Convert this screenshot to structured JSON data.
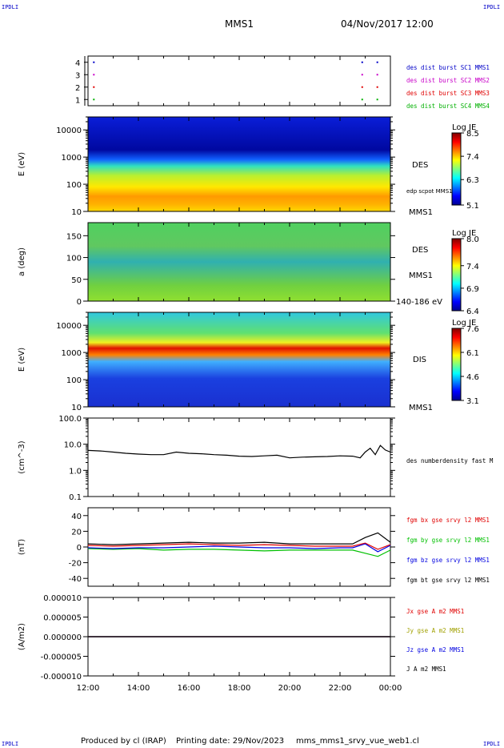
{
  "header": {
    "spacecraft": "MMS1",
    "datetime": "04/Nov/2017 12:00",
    "corner_label": "IPDLI"
  },
  "footer": {
    "produced_by": "Produced by cl (IRAP)",
    "printing_date": "Printing date: 29/Nov/2023",
    "script_name": "mms_mms1_srvy_vue_web1.cl"
  },
  "chart_data": [
    {
      "id": "burst",
      "type": "scatter",
      "ylim": [
        0.5,
        4.5
      ],
      "yticks": [
        "1",
        "2",
        "3",
        "4"
      ],
      "legend": [
        {
          "label": "des dist burst SC1 MMS1",
          "color": "#0000c8"
        },
        {
          "label": "des dist burst SC2 MMS2",
          "color": "#c800c8"
        },
        {
          "label": "des dist burst SC3 MMS3",
          "color": "#e00000"
        },
        {
          "label": "des dist burst SC4 MMS4",
          "color": "#00b000"
        }
      ],
      "marks": [
        {
          "sc": 4,
          "t": [
            12.2,
            22.85,
            23.45
          ]
        },
        {
          "sc": 3,
          "t": [
            12.2,
            22.85,
            23.45
          ]
        },
        {
          "sc": 2,
          "t": [
            12.2,
            22.85,
            23.45
          ]
        },
        {
          "sc": 1,
          "t": [
            12.2,
            22.85,
            23.45
          ]
        }
      ]
    },
    {
      "id": "des_energy",
      "type": "heatmap",
      "ylabel": "E (eV)",
      "yscale": "log",
      "ylim": [
        10,
        30000
      ],
      "yticks": [
        "10",
        "100",
        "1000",
        "10000"
      ],
      "right_labels": [
        "DES",
        "edp scpot MMS1",
        "MMS1"
      ],
      "colorbar": {
        "title": "Log JE",
        "ticks": [
          "8.5",
          "7.4",
          "6.3",
          "5.1"
        ],
        "min": 5.1,
        "max": 8.5
      }
    },
    {
      "id": "des_pitch",
      "type": "heatmap",
      "ylabel": "a (deg)",
      "ylim": [
        0,
        180
      ],
      "yticks": [
        "0",
        "50",
        "100",
        "150"
      ],
      "right_labels": [
        "DES",
        "MMS1",
        "140-186 eV"
      ],
      "colorbar": {
        "title": "Log JE",
        "ticks": [
          "8.0",
          "7.4",
          "6.9",
          "6.4"
        ],
        "min": 6.4,
        "max": 8.0
      }
    },
    {
      "id": "dis_energy",
      "type": "heatmap",
      "ylabel": "E (eV)",
      "yscale": "log",
      "ylim": [
        10,
        30000
      ],
      "yticks": [
        "10",
        "100",
        "1000",
        "10000"
      ],
      "right_labels": [
        "DIS",
        "MMS1"
      ],
      "colorbar": {
        "title": "Log JE",
        "ticks": [
          "7.6",
          "6.1",
          "4.6",
          "3.1"
        ],
        "min": 3.1,
        "max": 7.6
      }
    },
    {
      "id": "density",
      "type": "line",
      "ylabel": "(cm^-3)",
      "yscale": "log",
      "ylim": [
        0.1,
        100
      ],
      "yticks": [
        "0.1",
        "1.0",
        "10.0",
        "100.0"
      ],
      "series": [
        {
          "name": "des numberdensity fast M",
          "color": "#000000",
          "x": [
            12.0,
            12.5,
            13.0,
            13.5,
            14.0,
            14.5,
            15.0,
            15.5,
            16.0,
            16.5,
            17.0,
            17.5,
            18.0,
            18.5,
            19.0,
            19.5,
            20.0,
            20.5,
            21.0,
            21.5,
            22.0,
            22.5,
            22.8,
            23.0,
            23.2,
            23.4,
            23.6,
            23.8,
            24.0
          ],
          "y": [
            5.8,
            5.5,
            5.0,
            4.5,
            4.2,
            4.0,
            4.0,
            5.0,
            4.5,
            4.3,
            4.0,
            3.8,
            3.5,
            3.4,
            3.6,
            3.8,
            3.0,
            3.2,
            3.3,
            3.4,
            3.6,
            3.5,
            3.0,
            5.0,
            7.0,
            4.0,
            9.0,
            6.0,
            5.0
          ]
        }
      ]
    },
    {
      "id": "bfield",
      "type": "line",
      "ylabel": "(nT)",
      "ylim": [
        -50,
        50
      ],
      "yticks": [
        "-40",
        "-20",
        "0",
        "20",
        "40"
      ],
      "series": [
        {
          "name": "fgm bx gse srvy l2 MMS1",
          "color": "#e00000",
          "x": [
            12,
            13,
            14,
            15,
            16,
            17,
            18,
            19,
            20,
            21,
            22,
            22.5,
            23,
            23.5,
            24
          ],
          "y": [
            2,
            1,
            2,
            3,
            4,
            3,
            2,
            3,
            2,
            1,
            1,
            1,
            5,
            -3,
            3
          ]
        },
        {
          "name": "fgm by gse srvy l2 MMS1",
          "color": "#00c000",
          "x": [
            12,
            13,
            14,
            15,
            16,
            17,
            18,
            19,
            20,
            21,
            22,
            22.5,
            23,
            23.5,
            24
          ],
          "y": [
            -2,
            -3,
            -2,
            -4,
            -3,
            -3,
            -4,
            -5,
            -4,
            -4,
            -4,
            -4,
            -8,
            -12,
            -4
          ]
        },
        {
          "name": "fgm bz gse srvy l2 MMS1",
          "color": "#0000e0",
          "x": [
            12,
            13,
            14,
            15,
            16,
            17,
            18,
            19,
            20,
            21,
            22,
            22.5,
            23,
            23.5,
            24
          ],
          "y": [
            -1,
            -2,
            -1,
            -1,
            0,
            1,
            0,
            -1,
            -1,
            -2,
            -1,
            -1,
            4,
            -6,
            2
          ]
        },
        {
          "name": "fgm bt gse srvy l2 MMS1",
          "color": "#000000",
          "x": [
            12,
            13,
            14,
            15,
            16,
            17,
            18,
            19,
            20,
            21,
            22,
            22.5,
            23,
            23.5,
            24
          ],
          "y": [
            4,
            3,
            4,
            5,
            6,
            5,
            5,
            6,
            4,
            4,
            4,
            4,
            12,
            18,
            6
          ]
        }
      ]
    },
    {
      "id": "current",
      "type": "line",
      "ylabel": "(A/m2)",
      "ylim": [
        -1e-05,
        1e-05
      ],
      "yticks": [
        "-0.000010",
        "-0.000005",
        "0.000000",
        "0.000005",
        "0.000010"
      ],
      "series": [
        {
          "name": "Jx gse A m2 MMS1",
          "color": "#e00000",
          "x": [
            12,
            24
          ],
          "y": [
            0,
            0
          ]
        },
        {
          "name": "Jy gse A m2 MMS1",
          "color": "#a0a000",
          "x": [
            12,
            24
          ],
          "y": [
            0,
            0
          ]
        },
        {
          "name": "Jz gse A m2 MMS1",
          "color": "#0000e0",
          "x": [
            12,
            24
          ],
          "y": [
            0,
            0
          ]
        },
        {
          "name": "J A m2 MMS1",
          "color": "#000000",
          "x": [
            12,
            24
          ],
          "y": [
            0,
            0
          ]
        }
      ]
    }
  ],
  "xaxis": {
    "ticks": [
      "12:00",
      "14:00",
      "16:00",
      "18:00",
      "20:00",
      "22:00",
      "00:00"
    ],
    "range_hours": [
      12,
      24
    ]
  }
}
